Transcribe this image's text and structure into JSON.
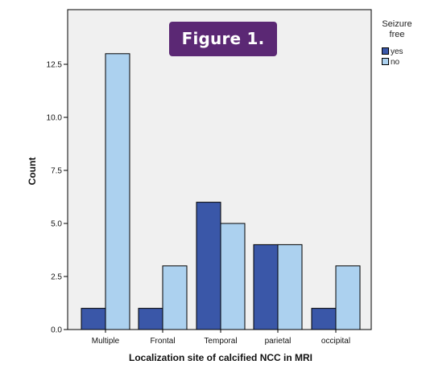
{
  "figure_label": "Figure 1.",
  "colors": {
    "yes": "#3a57a8",
    "no": "#acd1ef",
    "plot_background": "#f0f0f0"
  },
  "chart_data": {
    "type": "bar",
    "categories": [
      "Multiple",
      "Frontal",
      "Temporal",
      "parietal",
      "occipital"
    ],
    "series": [
      {
        "name": "yes",
        "values": [
          1,
          1,
          6,
          4,
          1
        ]
      },
      {
        "name": "no",
        "values": [
          13,
          3,
          5,
          4,
          3
        ]
      }
    ],
    "title": "",
    "xlabel": "Localization site of calcified NCC in MRI",
    "ylabel": "Count",
    "ylim": [
      0,
      15
    ],
    "yticks": [
      0.0,
      2.5,
      5.0,
      7.5,
      10.0,
      12.5
    ],
    "ytick_labels": [
      "0.0",
      "2.5",
      "5.0",
      "7.5",
      "10.0",
      "12.5"
    ],
    "legend": {
      "title": "Seizure free",
      "placement": "right",
      "entries": [
        "yes",
        "no"
      ]
    },
    "grid": false
  }
}
